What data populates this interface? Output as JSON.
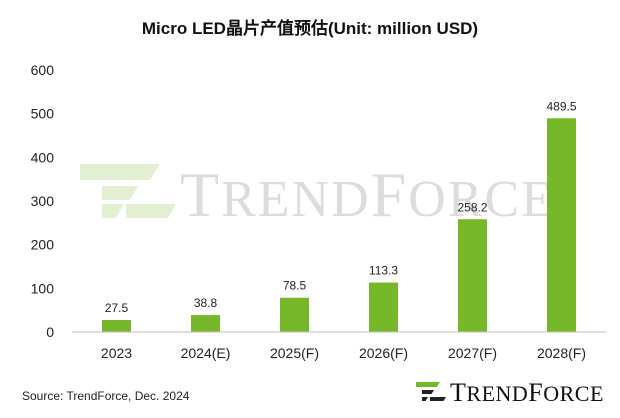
{
  "title": "Micro LED晶片产值预估(Unit: million USD)",
  "source": "Source: TrendForce,  Dec. 2024",
  "logo": {
    "first": "T",
    "rest": "REND",
    "first2": "F",
    "rest2": "ORCE"
  },
  "watermark": {
    "first": "T",
    "rest": "REND",
    "first2": "F",
    "rest2": "ORCE"
  },
  "colors": {
    "bar": "#77b82a",
    "axis": "#bfbfbf",
    "logo_green": "#77b82a",
    "logo_dark": "#222222"
  },
  "chart_data": {
    "type": "bar",
    "title": "Micro LED晶片产值预估(Unit: million USD)",
    "categories": [
      "2023",
      "2024(E)",
      "2025(F)",
      "2026(F)",
      "2027(F)",
      "2028(F)"
    ],
    "values": [
      27.5,
      38.8,
      78.5,
      113.3,
      258.2,
      489.5
    ],
    "value_labels": [
      "27.5",
      "38.8",
      "78.5",
      "113.3",
      "258.2",
      "489.5"
    ],
    "yticks": [
      "0",
      "100",
      "200",
      "300",
      "400",
      "500",
      "600"
    ],
    "ylim": [
      0,
      600
    ],
    "grid": false,
    "legend": "none"
  }
}
